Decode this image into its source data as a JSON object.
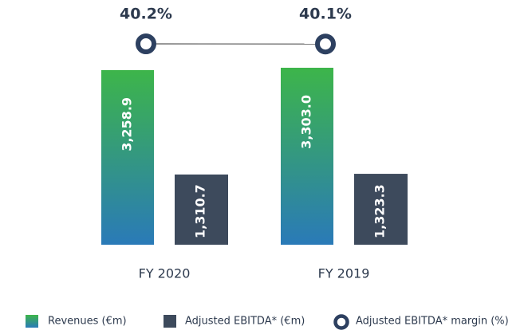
{
  "chart_data": {
    "type": "bar",
    "categories": [
      "FY 2020",
      "FY 2019"
    ],
    "series": [
      {
        "name": "Revenues (€m)",
        "color": [
          "#3db54a",
          "#2a7ab8"
        ],
        "values": [
          3258.9,
          3303.0
        ],
        "value_labels": [
          "3,258.9",
          "3,303.0"
        ]
      },
      {
        "name": "Adjusted EBITDA* (€m)",
        "color": "#3d4a5c",
        "values": [
          1310.7,
          1323.3
        ],
        "value_labels": [
          "1,310.7",
          "1,323.3"
        ]
      },
      {
        "name": "Adjusted EBITDA* margin (%)",
        "type": "line",
        "color": "#2d4060",
        "values": [
          40.2,
          40.1
        ],
        "value_labels": [
          "40.2%",
          "40.1%"
        ]
      }
    ]
  }
}
